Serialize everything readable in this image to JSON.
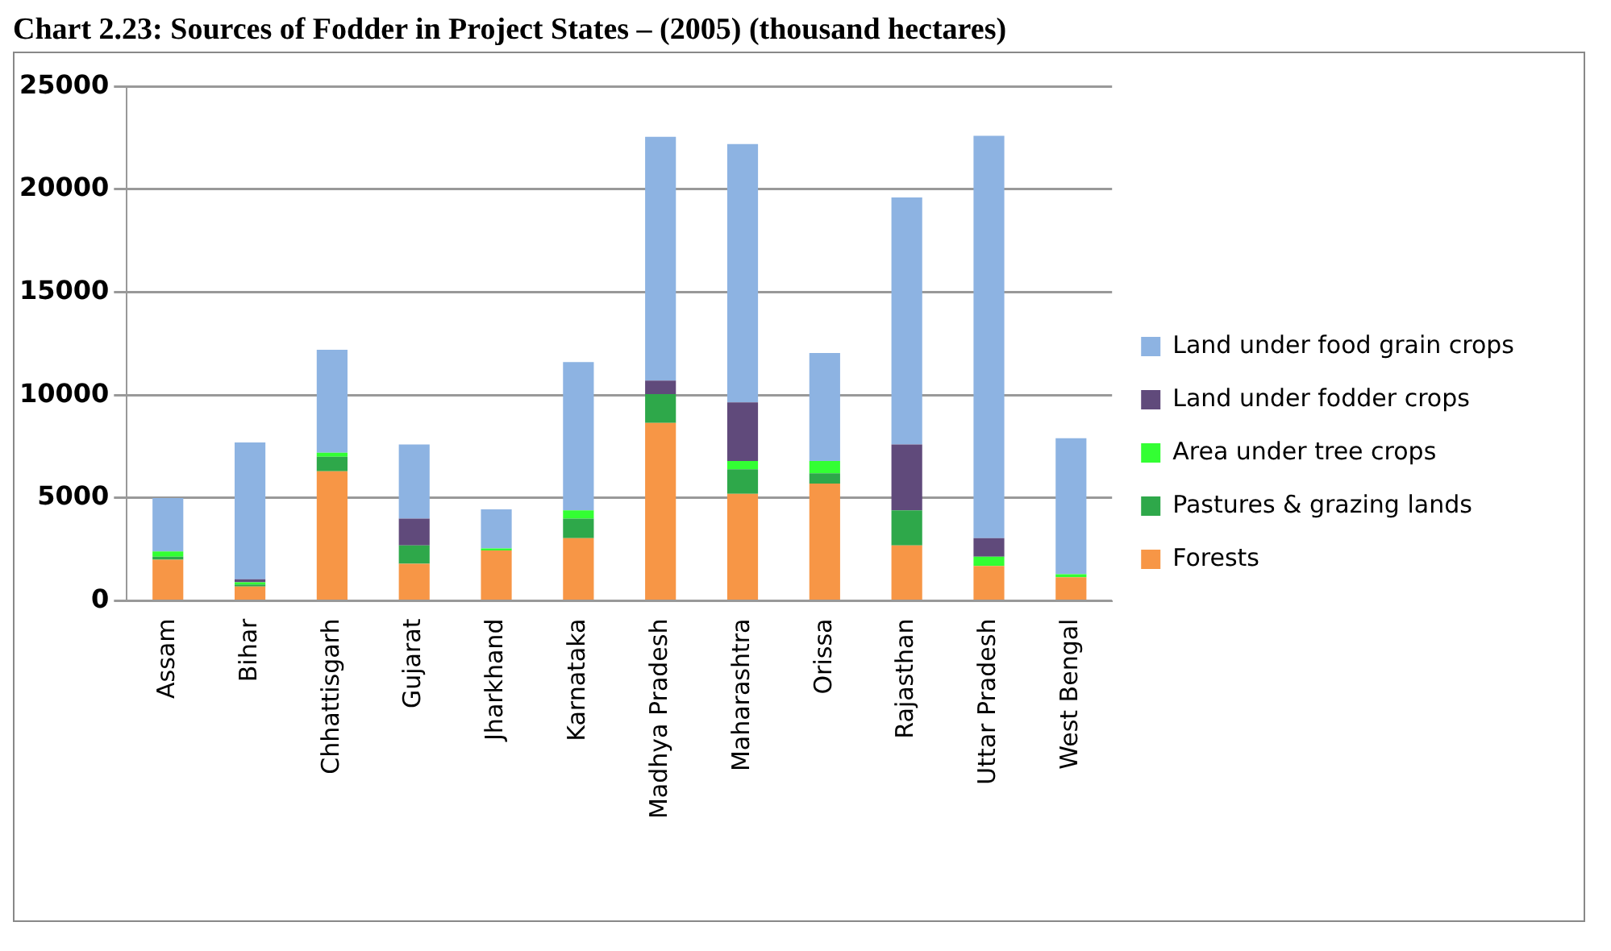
{
  "chart_data": {
    "type": "bar",
    "title": "Chart 2.23: Sources of Fodder in Project States – (2005) (thousand hectares)",
    "stacked": true,
    "categories": [
      "Assam",
      "Bihar",
      "Chhattisgarh",
      "Gujarat",
      "Jharkhand",
      "Karnataka",
      "Madhya Pradesh",
      "Maharashtra",
      "Orissa",
      "Rajasthan",
      "Uttar Pradesh",
      "West Bengal"
    ],
    "series": [
      {
        "name": "Forests",
        "color": "#f79646",
        "values": [
          2000,
          700,
          6300,
          1800,
          2450,
          3050,
          8650,
          5200,
          5700,
          2700,
          1700,
          1150
        ]
      },
      {
        "name": "Pastures & grazing lands",
        "color": "#2ea84a",
        "values": [
          150,
          100,
          700,
          900,
          0,
          950,
          1400,
          1200,
          500,
          1700,
          0,
          0
        ]
      },
      {
        "name": "Area under tree crops",
        "color": "#33ff33",
        "values": [
          250,
          100,
          200,
          0,
          100,
          400,
          0,
          400,
          600,
          0,
          450,
          150
        ]
      },
      {
        "name": "Land under fodder crops",
        "color": "#604a7b",
        "values": [
          0,
          150,
          0,
          1300,
          0,
          0,
          650,
          2850,
          0,
          3200,
          900,
          0
        ]
      },
      {
        "name": "Land under food grain crops",
        "color": "#8db3e2",
        "values": [
          2600,
          6650,
          5000,
          3600,
          1900,
          7200,
          11850,
          12550,
          5250,
          12000,
          19550,
          6600
        ]
      }
    ],
    "ylim": [
      0,
      25000
    ],
    "yticks": [
      0,
      5000,
      10000,
      15000,
      20000,
      25000
    ],
    "grid": "y",
    "legend": "right"
  }
}
